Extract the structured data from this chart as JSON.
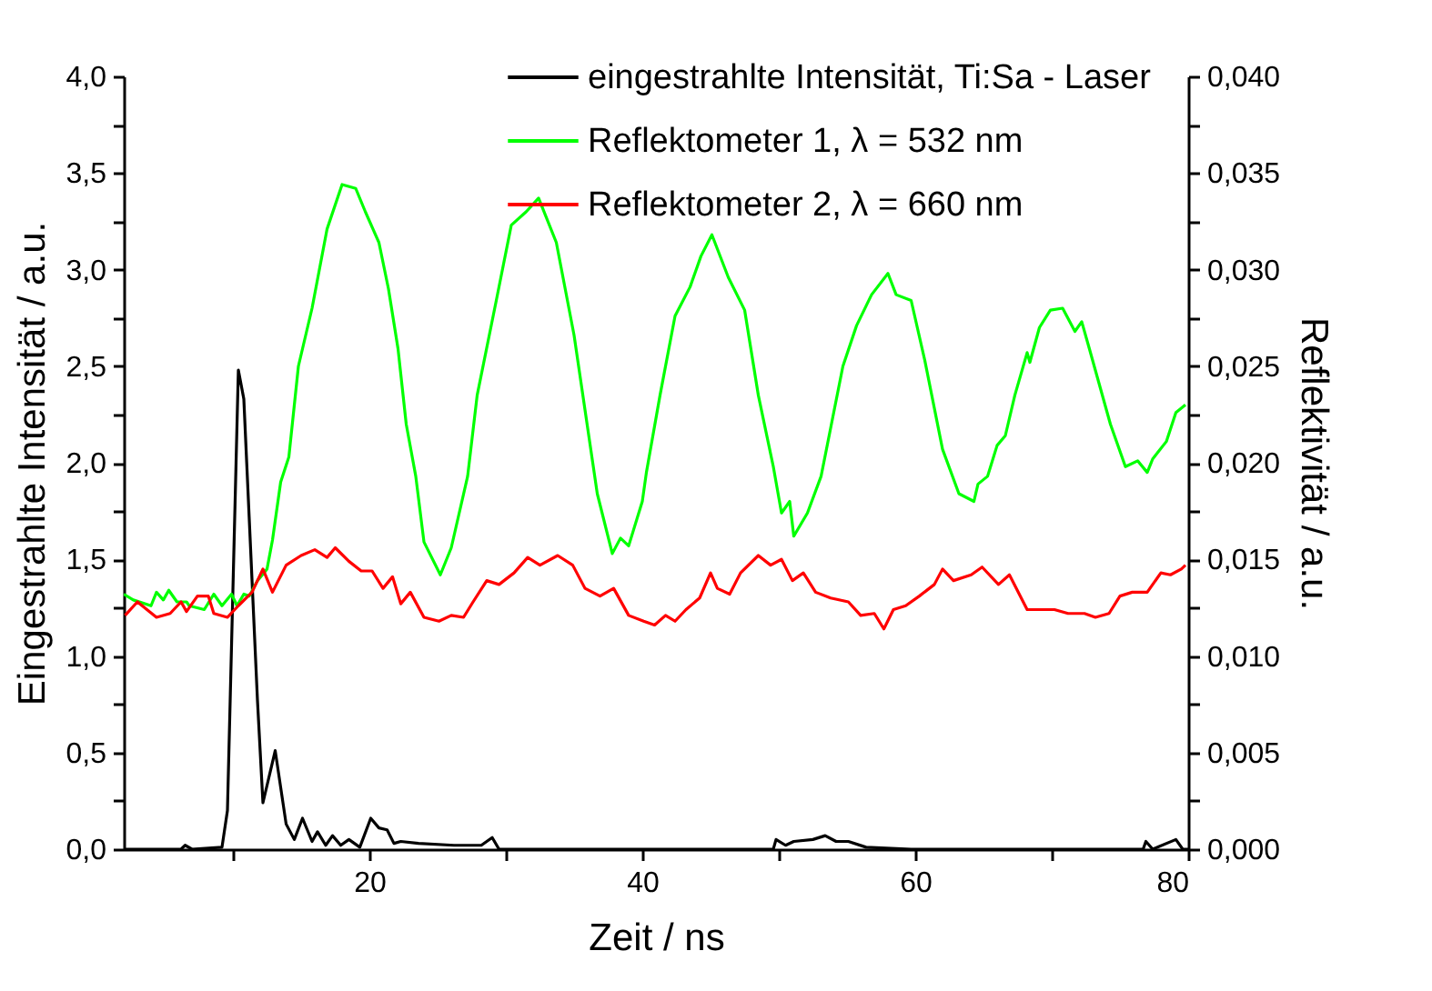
{
  "chart_data": {
    "type": "line",
    "xlabel": "Zeit / ns",
    "ylabel": "Eingestrahlte Intensität / a.u.",
    "y2label": "Reflektivität / a.u.",
    "xlim": [
      2,
      80
    ],
    "xticks": [
      {
        "value": 10,
        "label": null
      },
      {
        "value": 20,
        "label": "20"
      },
      {
        "value": 30,
        "label": null
      },
      {
        "value": 40,
        "label": "40"
      },
      {
        "value": 50,
        "label": null
      },
      {
        "value": 60,
        "label": "60"
      },
      {
        "value": 70,
        "label": null
      },
      {
        "value": 80,
        "label": "80"
      }
    ],
    "ylim": [
      0,
      4
    ],
    "yticks": [
      {
        "value": 0,
        "label": "0,0"
      },
      {
        "value": 0.25,
        "label": null
      },
      {
        "value": 0.5,
        "label": "0,5"
      },
      {
        "value": 0.75,
        "label": null
      },
      {
        "value": 1,
        "label": "1,0"
      },
      {
        "value": 1.25,
        "label": null
      },
      {
        "value": 1.5,
        "label": "1,5"
      },
      {
        "value": 1.75,
        "label": null
      },
      {
        "value": 2,
        "label": "2,0"
      },
      {
        "value": 2.25,
        "label": null
      },
      {
        "value": 2.5,
        "label": "2,5"
      },
      {
        "value": 2.75,
        "label": null
      },
      {
        "value": 3,
        "label": "3,0"
      },
      {
        "value": 3.25,
        "label": null
      },
      {
        "value": 3.5,
        "label": "3,5"
      },
      {
        "value": 3.75,
        "label": null
      },
      {
        "value": 4,
        "label": "4,0"
      }
    ],
    "y2lim": [
      0,
      0.04
    ],
    "y2ticks": [
      {
        "value": 0,
        "label": "0,000"
      },
      {
        "value": 0.0025,
        "label": null
      },
      {
        "value": 0.005,
        "label": "0,005"
      },
      {
        "value": 0.0075,
        "label": null
      },
      {
        "value": 0.01,
        "label": "0,010"
      },
      {
        "value": 0.0125,
        "label": null
      },
      {
        "value": 0.015,
        "label": "0,015"
      },
      {
        "value": 0.0175,
        "label": null
      },
      {
        "value": 0.02,
        "label": "0,020"
      },
      {
        "value": 0.0225,
        "label": null
      },
      {
        "value": 0.025,
        "label": "0,025"
      },
      {
        "value": 0.0275,
        "label": null
      },
      {
        "value": 0.03,
        "label": "0,030"
      },
      {
        "value": 0.0325,
        "label": null
      },
      {
        "value": 0.035,
        "label": "0,035"
      },
      {
        "value": 0.0375,
        "label": null
      },
      {
        "value": 0.04,
        "label": "0,040"
      }
    ],
    "grid": false,
    "legend": "top",
    "series": [
      {
        "name": "eingestrahlte Intensität, Ti:Sa - Laser",
        "color": "#000000",
        "x": [
          2,
          6.2,
          6.5,
          7,
          9.2,
          9.6,
          10.4,
          10.8,
          11.8,
          12.2,
          13.1,
          13.9,
          14.5,
          15.1,
          15.8,
          16.2,
          16.8,
          17.3,
          17.9,
          18.5,
          19.3,
          20.1,
          20.7,
          21.3,
          21.8,
          22.3,
          23.6,
          26.2,
          28.2,
          29.0,
          29.5,
          49.6,
          49.8,
          50.5,
          51.1,
          52.5,
          53.4,
          54.2,
          55.1,
          56.4,
          59.7,
          76.7,
          76.9,
          77.4,
          79.1,
          79.6,
          80
        ],
        "values": [
          0,
          0,
          0.02,
          0,
          0.01,
          0.2,
          2.48,
          2.33,
          0.77,
          0.24,
          0.51,
          0.13,
          0.05,
          0.16,
          0.04,
          0.09,
          0.02,
          0.07,
          0.02,
          0.05,
          0.01,
          0.16,
          0.11,
          0.1,
          0.03,
          0.04,
          0.03,
          0.02,
          0.02,
          0.06,
          0,
          0,
          0.05,
          0.02,
          0.04,
          0.05,
          0.07,
          0.04,
          0.04,
          0.01,
          0,
          0,
          0.04,
          0,
          0.05,
          0,
          0
        ]
      },
      {
        "name": "Reflektometer 1, λ = 532 nm",
        "color": "#00ff00",
        "axis": "y2",
        "x": [
          2.0,
          2.7,
          4.0,
          4.4,
          4.9,
          5.3,
          5.9,
          6.6,
          6.8,
          7.9,
          8.6,
          9.2,
          9.9,
          10.3,
          10.8,
          11.2,
          11.8,
          12.5,
          12.9,
          13.5,
          14.1,
          14.8,
          15.8,
          16.9,
          18.0,
          19.0,
          19.7,
          20.7,
          21.4,
          22.1,
          22.7,
          23.4,
          24.0,
          25.2,
          26.0,
          27.2,
          27.9,
          29.3,
          30.4,
          31.5,
          32.4,
          33.7,
          35.0,
          36.7,
          37.8,
          38.4,
          39.0,
          40.0,
          40.3,
          41.3,
          42.4,
          43.5,
          44.3,
          45.1,
          46.3,
          47.5,
          48.5,
          49.6,
          50.2,
          50.8,
          51.1,
          52.1,
          53.1,
          54.7,
          55.7,
          56.8,
          58.0,
          58.6,
          59.7,
          60.7,
          62.0,
          63.2,
          64.3,
          64.6,
          65.3,
          66.0,
          66.6,
          67.3,
          68.2,
          68.4,
          69.1,
          69.9,
          70.8,
          71.7,
          72.2,
          72.8,
          74.3,
          75.4,
          76.3,
          77.0,
          77.4,
          78.4,
          79.1,
          79.8
        ],
        "values": [
          0.0132,
          0.0129,
          0.0126,
          0.0133,
          0.0129,
          0.0134,
          0.0128,
          0.0128,
          0.0126,
          0.0124,
          0.0132,
          0.0126,
          0.0132,
          0.0126,
          0.0132,
          0.0131,
          0.0139,
          0.0145,
          0.016,
          0.019,
          0.0203,
          0.025,
          0.028,
          0.0321,
          0.0344,
          0.0342,
          0.033,
          0.0314,
          0.029,
          0.0259,
          0.022,
          0.0193,
          0.0159,
          0.0142,
          0.0156,
          0.0193,
          0.0235,
          0.0284,
          0.0323,
          0.033,
          0.0337,
          0.0314,
          0.0266,
          0.0184,
          0.0153,
          0.0161,
          0.0157,
          0.018,
          0.0195,
          0.0235,
          0.0276,
          0.0291,
          0.0307,
          0.0318,
          0.0296,
          0.0279,
          0.0235,
          0.0198,
          0.0174,
          0.018,
          0.0162,
          0.0174,
          0.0193,
          0.025,
          0.0271,
          0.0287,
          0.0298,
          0.0287,
          0.0284,
          0.0253,
          0.0207,
          0.0184,
          0.018,
          0.0189,
          0.0193,
          0.0209,
          0.0214,
          0.0235,
          0.0257,
          0.0252,
          0.027,
          0.0279,
          0.028,
          0.0268,
          0.0273,
          0.0258,
          0.022,
          0.0198,
          0.0201,
          0.0195,
          0.0202,
          0.0211,
          0.0226,
          0.023
        ]
      },
      {
        "name": "Reflektometer 2, λ = 660 nm",
        "color": "#ff0000",
        "axis": "y2",
        "x": [
          2.1,
          3.0,
          4.4,
          5.4,
          6.2,
          6.6,
          7.4,
          8.2,
          8.6,
          9.6,
          10.4,
          11.4,
          12.2,
          12.9,
          13.9,
          15.0,
          16.0,
          16.9,
          17.5,
          18.5,
          19.4,
          20.2,
          21.0,
          21.7,
          22.3,
          23.0,
          24.0,
          25.1,
          26.0,
          26.9,
          27.6,
          28.6,
          29.5,
          30.6,
          31.6,
          32.5,
          33.8,
          34.9,
          35.8,
          36.9,
          37.9,
          39.0,
          40.1,
          40.9,
          41.7,
          42.4,
          43.2,
          44.2,
          45.0,
          45.5,
          46.4,
          47.2,
          48.5,
          49.4,
          50.2,
          51.0,
          51.8,
          52.7,
          53.8,
          55.1,
          56.0,
          57.0,
          57.7,
          58.4,
          59.3,
          60.3,
          61.4,
          62.0,
          62.8,
          64.1,
          64.9,
          66.1,
          66.9,
          68.2,
          69.1,
          70.2,
          71.2,
          72.4,
          73.2,
          74.2,
          75.0,
          75.9,
          77.0,
          78.0,
          78.7,
          79.5,
          79.8
        ],
        "values": [
          0.0121,
          0.0128,
          0.012,
          0.0122,
          0.0128,
          0.0123,
          0.0131,
          0.0131,
          0.0122,
          0.012,
          0.0126,
          0.0133,
          0.0145,
          0.0133,
          0.0147,
          0.0152,
          0.0155,
          0.0151,
          0.0156,
          0.0149,
          0.0144,
          0.0144,
          0.0135,
          0.0141,
          0.0127,
          0.0133,
          0.012,
          0.0118,
          0.0121,
          0.012,
          0.0128,
          0.0139,
          0.0137,
          0.0143,
          0.0151,
          0.0147,
          0.0152,
          0.0147,
          0.0135,
          0.0131,
          0.0135,
          0.0121,
          0.0118,
          0.0116,
          0.0121,
          0.0118,
          0.0124,
          0.013,
          0.0143,
          0.0135,
          0.0132,
          0.0143,
          0.0152,
          0.0147,
          0.015,
          0.0139,
          0.0143,
          0.0133,
          0.013,
          0.0128,
          0.0121,
          0.0122,
          0.0114,
          0.0124,
          0.0126,
          0.0131,
          0.0137,
          0.0145,
          0.0139,
          0.0142,
          0.0146,
          0.0137,
          0.0142,
          0.0124,
          0.0124,
          0.0124,
          0.0122,
          0.0122,
          0.012,
          0.0122,
          0.0131,
          0.0133,
          0.0133,
          0.0143,
          0.0142,
          0.0145,
          0.0147
        ]
      }
    ]
  }
}
